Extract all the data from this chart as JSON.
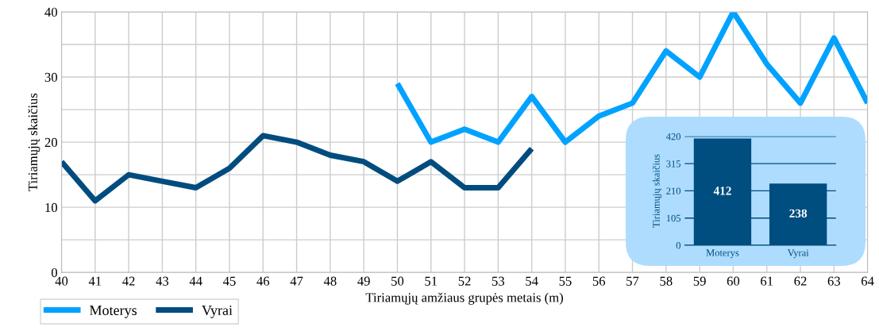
{
  "chart_data": [
    {
      "type": "line",
      "xlabel": "Tiriamųjų amžiaus grupės metais (m)",
      "ylabel": "Tiriamųjų skaičius",
      "xlim": [
        40,
        64
      ],
      "xticks": [
        40,
        41,
        42,
        43,
        44,
        45,
        46,
        47,
        48,
        49,
        50,
        51,
        52,
        53,
        54,
        55,
        56,
        57,
        58,
        59,
        60,
        61,
        62,
        63,
        64
      ],
      "ylim": [
        0,
        40
      ],
      "yticks": [
        0,
        {
          "value": 5,
          "label": null
        },
        10,
        {
          "value": 15,
          "label": null
        },
        20,
        {
          "value": 25,
          "label": null
        },
        30,
        {
          "value": 35,
          "label": null
        },
        40
      ],
      "grid": true,
      "legend": "bottom left",
      "marker": "none",
      "line_style": "solid",
      "series": [
        {
          "name": "Moterys",
          "color": "#00a2ff",
          "x": [
            50,
            51,
            52,
            53,
            54,
            55,
            56,
            57,
            58,
            59,
            60,
            61,
            62,
            63,
            64
          ],
          "values": [
            29,
            20,
            22,
            20,
            27,
            20,
            24,
            26,
            34,
            30,
            40,
            32,
            26,
            36,
            26
          ]
        },
        {
          "name": "Vyrai",
          "color": "#004c7f",
          "x": [
            40,
            41,
            42,
            43,
            44,
            45,
            46,
            47,
            48,
            49,
            50,
            51,
            52,
            53,
            54
          ],
          "values": [
            17,
            11,
            15,
            14,
            13,
            16,
            21,
            20,
            18,
            17,
            14,
            17,
            13,
            13,
            19
          ]
        }
      ]
    },
    {
      "type": "bar",
      "ylabel": "Tiriamųjų skaičius",
      "categories": [
        "Moterys",
        "Vyrai"
      ],
      "values": [
        412,
        238
      ],
      "color": "#004d80",
      "ylim": [
        0,
        420
      ],
      "yticks": [
        0,
        105,
        210,
        315,
        420
      ],
      "grid": "y",
      "data_labels": true
    }
  ]
}
